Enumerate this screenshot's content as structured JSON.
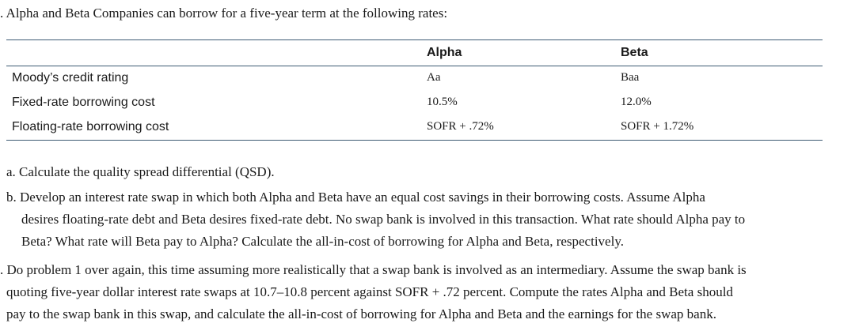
{
  "intro": ". Alpha and Beta Companies can borrow for a five-year term at the following rates:",
  "table": {
    "headers": [
      "",
      "Alpha",
      "Beta"
    ],
    "rows": [
      {
        "label": "Moody’s credit rating",
        "alpha": "Aa",
        "beta": "Baa"
      },
      {
        "label": "Fixed-rate borrowing cost",
        "alpha": "10.5%",
        "beta": "12.0%"
      },
      {
        "label": "Floating-rate borrowing cost",
        "alpha": "SOFR + .72%",
        "beta": "SOFR + 1.72%"
      }
    ]
  },
  "questions": {
    "a": "a. Calculate the quality spread differential (QSD).",
    "b_lines": [
      "b. Develop an interest rate swap in which both Alpha and Beta have an equal cost savings in their borrowing costs. Assume Alpha",
      "desires floating-rate debt and Beta desires fixed-rate debt. No swap bank is involved in this transaction. What rate should Alpha pay to",
      "Beta? What rate will Beta pay to Alpha? Calculate the all-in-cost of borrowing for Alpha and Beta, respectively."
    ],
    "p2_lines": [
      ". Do problem 1 over again, this time assuming more realistically that a swap bank is involved as an intermediary. Assume the swap bank is",
      "quoting five-year dollar interest rate swaps at 10.7–10.8 percent against SOFR + .72 percent. Compute the rates Alpha and Beta should",
      "pay to the swap bank in this swap, and calculate the all-in-cost of borrowing for Alpha and Beta and the earnings for the swap bank."
    ]
  }
}
